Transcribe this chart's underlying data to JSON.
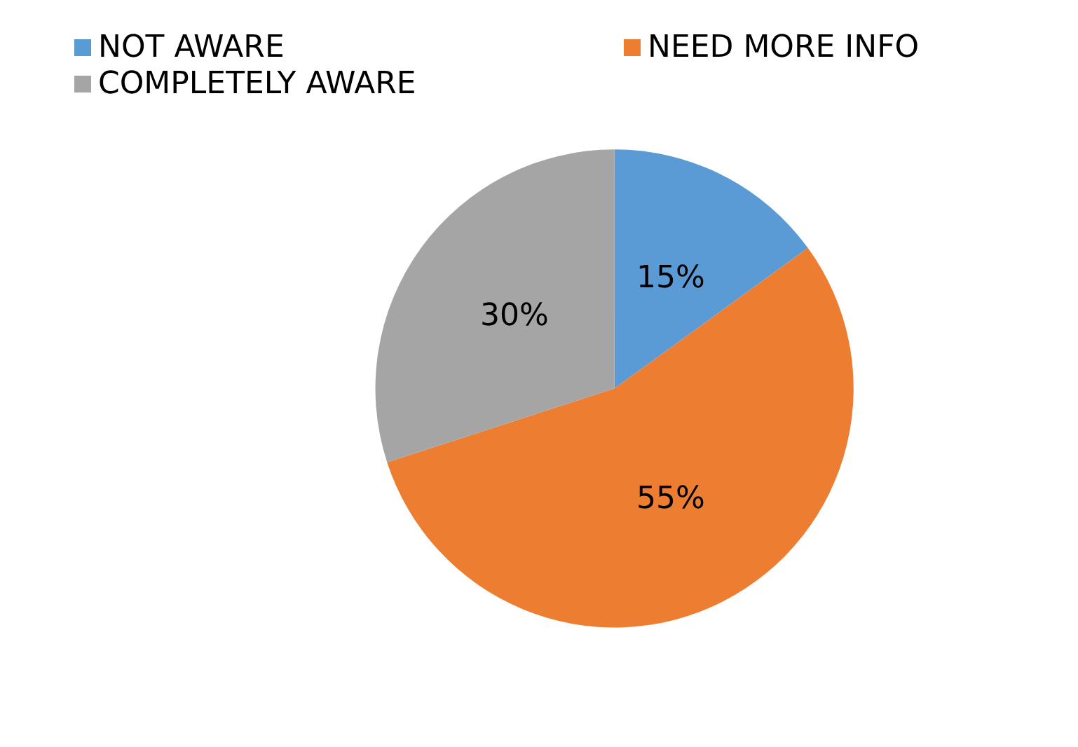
{
  "chart_data": {
    "type": "pie",
    "categories": [
      "NOT AWARE",
      "NEED MORE INFO",
      "COMPLETELY AWARE"
    ],
    "values": [
      15,
      55,
      30
    ],
    "value_labels": [
      "15%",
      "55%",
      "30%"
    ],
    "colors": [
      "#5b9bd5",
      "#ed7d31",
      "#a5a5a5"
    ],
    "legend": "top left"
  }
}
